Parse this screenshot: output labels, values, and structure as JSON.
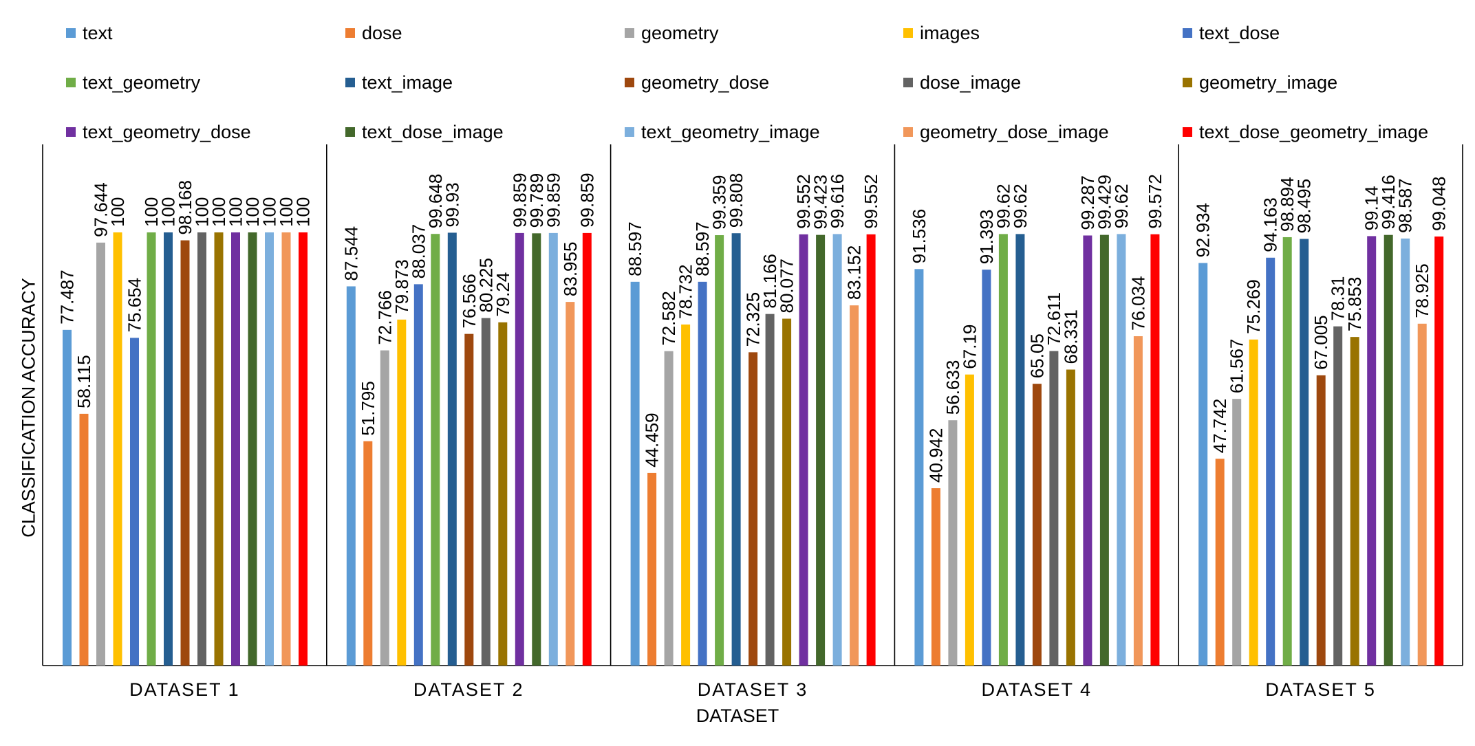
{
  "chart_data": {
    "type": "bar",
    "xlabel": "DATASET",
    "ylabel": "CLASSIFICATION ACCURACY",
    "ylim": [
      0,
      100
    ],
    "grid": false,
    "legend_position": "top",
    "categories": [
      "DATASET 1",
      "DATASET 2",
      "DATASET 3",
      "DATASET 4",
      "DATASET 5"
    ],
    "series": [
      {
        "name": "text",
        "color": "#5B9BD5",
        "values": [
          77.487,
          87.544,
          88.597,
          91.536,
          92.934
        ],
        "labels": [
          "77.487",
          "87.544",
          "88.597",
          "91.536",
          "92.934"
        ]
      },
      {
        "name": "dose",
        "color": "#ED7D31",
        "values": [
          58.115,
          51.795,
          44.459,
          40.942,
          47.742
        ],
        "labels": [
          "58.115",
          "51.795",
          "44.459",
          "40.942",
          "47.742"
        ]
      },
      {
        "name": "geometry",
        "color": "#A5A5A5",
        "values": [
          97.644,
          72.766,
          72.582,
          56.633,
          61.567
        ],
        "labels": [
          "97.644",
          "72.766",
          "72.582",
          "56.633",
          "61.567"
        ]
      },
      {
        "name": "images",
        "color": "#FFC000",
        "values": [
          100,
          79.873,
          78.732,
          67.19,
          75.269
        ],
        "labels": [
          "100",
          "79.873",
          "78.732",
          "67.19",
          "75.269"
        ]
      },
      {
        "name": "text_dose",
        "color": "#4472C4",
        "values": [
          75.654,
          88.037,
          88.597,
          91.393,
          94.163
        ],
        "labels": [
          "75.654",
          "88.037",
          "88.597",
          "91.393",
          "94.163"
        ]
      },
      {
        "name": "text_geometry",
        "color": "#70AD47",
        "values": [
          100,
          99.648,
          99.359,
          99.62,
          98.894
        ],
        "labels": [
          "100",
          "99.648",
          "99.359",
          "99.62",
          "98.894"
        ]
      },
      {
        "name": "text_image",
        "color": "#255E91",
        "values": [
          100,
          99.93,
          99.808,
          99.62,
          98.495
        ],
        "labels": [
          "100",
          "99.93",
          "99.808",
          "99.62",
          "98.495"
        ]
      },
      {
        "name": "geometry_dose",
        "color": "#9E480E",
        "values": [
          98.168,
          76.566,
          72.325,
          65.05,
          67.005
        ],
        "labels": [
          "98.168",
          "76.566",
          "72.325",
          "65.05",
          "67.005"
        ]
      },
      {
        "name": "dose_image",
        "color": "#636363",
        "values": [
          100,
          80.225,
          81.166,
          72.611,
          78.31
        ],
        "labels": [
          "100",
          "80.225",
          "81.166",
          "72.611",
          "78.31"
        ]
      },
      {
        "name": "geometry_image",
        "color": "#997300",
        "values": [
          100,
          79.24,
          80.077,
          68.331,
          75.853
        ],
        "labels": [
          "100",
          "79.24",
          "80.077",
          "68.331",
          "75.853"
        ]
      },
      {
        "name": "text_geometry_dose",
        "color": "#7030A0",
        "values": [
          100,
          99.859,
          99.552,
          99.287,
          99.14
        ],
        "labels": [
          "100",
          "99.859",
          "99.552",
          "99.287",
          "99.14"
        ]
      },
      {
        "name": "text_dose_image",
        "color": "#43682B",
        "values": [
          100,
          99.789,
          99.423,
          99.429,
          99.416
        ],
        "labels": [
          "100",
          "99.789",
          "99.423",
          "99.429",
          "99.416"
        ]
      },
      {
        "name": "text_geometry_image",
        "color": "#7CAFDD",
        "values": [
          100,
          99.859,
          99.616,
          99.62,
          98.587
        ],
        "labels": [
          "100",
          "99.859",
          "99.616",
          "99.62",
          "98.587"
        ]
      },
      {
        "name": "geometry_dose_image",
        "color": "#F1975A",
        "values": [
          100,
          83.955,
          83.152,
          76.034,
          78.925
        ],
        "labels": [
          "100",
          "83.955",
          "83.152",
          "76.034",
          "78.925"
        ]
      },
      {
        "name": "text_dose_geometry_image",
        "color": "#FF0000",
        "values": [
          100,
          99.859,
          99.552,
          99.572,
          99.048
        ],
        "labels": [
          "100",
          "99.859",
          "99.552",
          "99.572",
          "99.048"
        ]
      }
    ]
  }
}
